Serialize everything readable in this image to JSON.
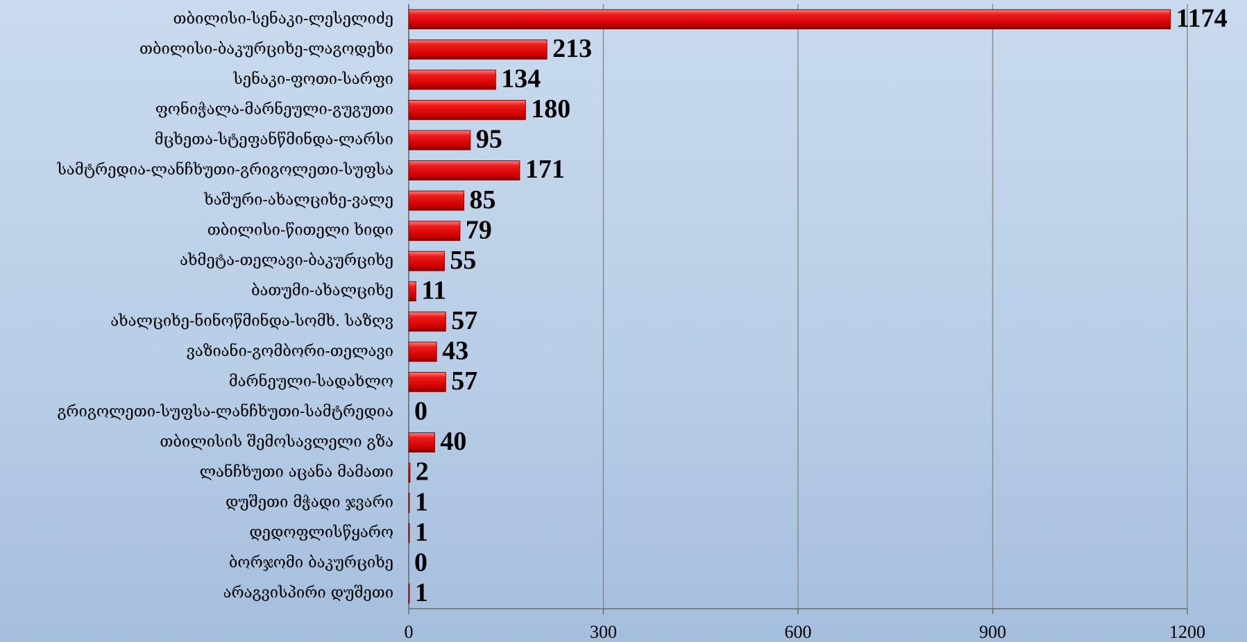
{
  "chart_data": {
    "type": "bar",
    "orientation": "horizontal",
    "categories": [
      "თბილისი-სენაკი-ლესელიძე",
      "თბილისი-ბაკურციხე-ლაგოდეხი",
      "სენაკი-ფოთი-სარფი",
      "ფონიჭალა-მარნეული-გუგუთი",
      "მცხეთა-სტეფანწმინდა-ლარსი",
      "სამტრედია-ლანჩხუთი-გრიგოლეთი-სუფსა",
      "ხაშური-ახალციხე-ვალე",
      "თბილისი-წითელი ხიდი",
      "ახმეტა-თელავი-ბაკურციხე",
      "ბათუმი-ახალციხე",
      "ახალციხე-ნინოწმინდა-სომხ. საზღვ",
      "ვაზიანი-გომბორი-თელავი",
      "მარნეული-სადახლო",
      "გრიგოლეთი-სუფსა-ლანჩხუთი-სამტრედია",
      "თბილისის შემოსავლელი გზა",
      "ლანჩხუთი აცანა მამათი",
      "დუშეთი მჭადი ჯვარი",
      "დედოფლისწყარო",
      "ბორჯომი ბაკურციხე",
      "არაგვისპირი დუშეთი"
    ],
    "values": [
      1174,
      213,
      134,
      180,
      95,
      171,
      85,
      79,
      55,
      11,
      57,
      43,
      57,
      0,
      40,
      2,
      1,
      1,
      0,
      1
    ],
    "color": "#e01010",
    "xlim": [
      0,
      1200
    ],
    "xticks": [
      0,
      300,
      600,
      900,
      1200
    ],
    "grid": true
  }
}
